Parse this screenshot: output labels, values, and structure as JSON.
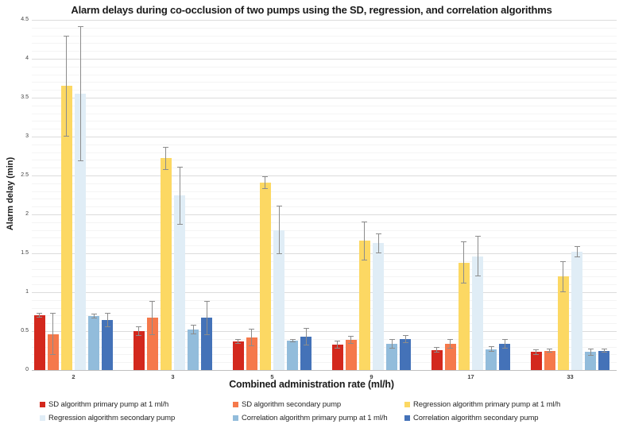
{
  "chart_data": {
    "type": "bar",
    "title": "Alarm delays during co-occlusion of two pumps using the SD, regression, and correlation algorithms",
    "xlabel": "Combined administration rate (ml/h)",
    "ylabel": "Alarm delay (min)",
    "ylim": [
      0,
      4.5
    ],
    "ytick_step": 0.5,
    "yminor_step": 0.1,
    "grid": "horizontal major+minor",
    "legend_position": "bottom, 2 rows x 3 columns",
    "error_bars": true,
    "error_bar_color": "#8c8c8c",
    "categories": [
      "2",
      "3",
      "5",
      "9",
      "17",
      "33"
    ],
    "series": [
      {
        "name": "SD algorithm primary pump at 1 ml/h",
        "color": "#d3281d",
        "values": [
          0.7,
          0.5,
          0.37,
          0.33,
          0.26,
          0.23
        ],
        "errors": [
          0.03,
          0.06,
          0.03,
          0.05,
          0.04,
          0.04
        ]
      },
      {
        "name": "SD algorithm secondary pump",
        "color": "#f5794b",
        "values": [
          0.46,
          0.67,
          0.42,
          0.39,
          0.34,
          0.25
        ],
        "errors": [
          0.27,
          0.22,
          0.11,
          0.05,
          0.06,
          0.03
        ]
      },
      {
        "name": "Regression algorithm primary pump at 1 ml/h",
        "color": "#fcd863",
        "values": [
          3.65,
          2.72,
          2.41,
          1.66,
          1.38,
          1.2
        ],
        "errors": [
          0.65,
          0.15,
          0.08,
          0.25,
          0.27,
          0.2
        ]
      },
      {
        "name": "Regression algorithm secondary pump",
        "color": "#e0edf6",
        "values": [
          3.55,
          2.24,
          1.8,
          1.63,
          1.46,
          1.52
        ],
        "errors": [
          0.87,
          0.37,
          0.31,
          0.13,
          0.26,
          0.07
        ]
      },
      {
        "name": "Correlation algorithm primary pump at 1 ml/h",
        "color": "#92bcdb",
        "values": [
          0.69,
          0.52,
          0.38,
          0.34,
          0.27,
          0.23
        ],
        "errors": [
          0.03,
          0.06,
          0.02,
          0.06,
          0.04,
          0.05
        ]
      },
      {
        "name": "Correlation algorithm secondary pump",
        "color": "#4472b8",
        "values": [
          0.64,
          0.67,
          0.43,
          0.4,
          0.34,
          0.25
        ],
        "errors": [
          0.09,
          0.22,
          0.11,
          0.05,
          0.06,
          0.03
        ]
      }
    ]
  }
}
